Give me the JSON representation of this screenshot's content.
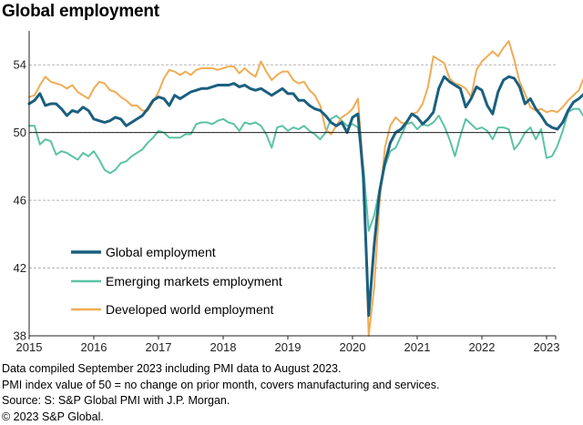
{
  "title": "Global employment",
  "notes": [
    "Data compiled September 2023 including PMI data to August 2023.",
    "PMI index value of 50 = no change on prior month, covers manufacturing and services.",
    "Source: S: S&P Global PMI with J.P. Morgan.",
    "© 2023 S&P Global."
  ],
  "chart_data": {
    "type": "line",
    "title": "Global employment",
    "x_axis": {
      "start": "2015-01",
      "end": "2023-08",
      "frequency": "monthly",
      "tick_labels": [
        "2015",
        "2016",
        "2017",
        "2018",
        "2019",
        "2020",
        "2021",
        "2022",
        "2023"
      ]
    },
    "y_axis": {
      "ylim": [
        38,
        56
      ],
      "ticks": [
        38,
        42,
        46,
        50,
        54
      ],
      "reference_line": 50
    },
    "grid": "horizontal dashed",
    "legend_position": "bottom-left inside",
    "series": [
      {
        "name": "Global employment",
        "color": "#1b5f7f",
        "values": [
          51.7,
          51.9,
          52.3,
          51.6,
          51.7,
          51.7,
          51.4,
          51.0,
          51.3,
          51.2,
          51.5,
          51.3,
          50.8,
          50.7,
          50.6,
          50.7,
          50.9,
          50.8,
          50.4,
          50.6,
          50.8,
          51.0,
          51.4,
          51.9,
          52.1,
          52.0,
          51.6,
          52.2,
          52.0,
          52.2,
          52.4,
          52.5,
          52.6,
          52.6,
          52.7,
          52.8,
          52.8,
          52.8,
          52.9,
          52.7,
          52.8,
          52.6,
          52.5,
          52.6,
          52.4,
          52.2,
          52.4,
          52.6,
          52.3,
          52.3,
          51.9,
          51.9,
          51.6,
          51.4,
          51.3,
          51.0,
          50.6,
          50.4,
          50.6,
          50.0,
          50.9,
          51.1,
          47.4,
          39.2,
          43.3,
          46.5,
          48.2,
          49.4,
          50.0,
          50.2,
          50.6,
          51.1,
          50.9,
          50.5,
          50.8,
          51.2,
          52.6,
          53.3,
          53.0,
          52.8,
          52.6,
          51.5,
          52.0,
          52.7,
          52.5,
          51.6,
          51.1,
          52.4,
          53.1,
          53.3,
          53.2,
          52.7,
          51.7,
          52.0,
          51.4,
          51.0,
          50.5,
          50.3,
          50.2,
          50.6,
          51.3,
          51.8,
          52.0,
          52.3,
          52.0,
          51.8,
          51.3,
          50.9,
          51.2
        ]
      },
      {
        "name": "Emerging markets employment",
        "color": "#5cc2a6",
        "values": [
          50.4,
          50.4,
          49.3,
          49.6,
          49.5,
          48.7,
          48.9,
          48.8,
          48.6,
          48.4,
          48.8,
          48.6,
          48.9,
          48.4,
          47.8,
          47.6,
          47.8,
          48.2,
          48.3,
          48.6,
          48.8,
          49.0,
          49.4,
          49.7,
          50.1,
          50.0,
          49.7,
          49.7,
          49.7,
          49.9,
          49.9,
          50.5,
          50.6,
          50.6,
          50.5,
          50.7,
          50.8,
          50.6,
          50.5,
          50.1,
          50.6,
          50.5,
          50.6,
          50.4,
          49.9,
          49.1,
          50.3,
          50.4,
          50.1,
          50.3,
          50.2,
          50.4,
          50.1,
          49.9,
          49.6,
          50.0,
          50.8,
          51.0,
          50.7,
          50.4,
          50.5,
          50.3,
          48.0,
          44.2,
          45.1,
          46.6,
          48.0,
          48.9,
          49.1,
          49.8,
          50.5,
          50.6,
          50.2,
          50.5,
          50.4,
          50.6,
          51.0,
          50.4,
          49.6,
          48.6,
          49.8,
          50.8,
          50.5,
          50.2,
          50.3,
          50.1,
          49.6,
          50.3,
          50.3,
          50.2,
          49.0,
          49.4,
          50.0,
          50.3,
          49.6,
          50.2,
          48.5,
          48.6,
          49.2,
          50.1,
          51.2,
          51.4,
          51.4,
          50.9,
          50.5,
          51.0,
          50.9,
          51.0,
          51.7
        ]
      },
      {
        "name": "Developed world employment",
        "color": "#f0ac55",
        "values": [
          52.1,
          52.2,
          52.8,
          53.3,
          53.0,
          52.9,
          52.8,
          52.6,
          52.8,
          52.4,
          52.2,
          52.0,
          52.6,
          53.0,
          52.9,
          52.5,
          52.4,
          52.1,
          51.9,
          51.6,
          51.6,
          51.3,
          51.3,
          51.8,
          52.4,
          53.2,
          53.7,
          53.6,
          53.4,
          53.6,
          53.4,
          53.7,
          53.8,
          53.8,
          53.8,
          53.7,
          53.8,
          53.9,
          53.9,
          53.5,
          53.8,
          53.5,
          53.3,
          54.2,
          53.6,
          53.1,
          53.4,
          53.6,
          53.6,
          53.1,
          52.9,
          53.0,
          52.5,
          52.2,
          51.6,
          50.2,
          49.9,
          50.4,
          50.9,
          51.1,
          51.4,
          52.0,
          47.8,
          38.0,
          40.8,
          45.8,
          49.1,
          50.4,
          50.9,
          50.6,
          50.5,
          51.1,
          51.2,
          51.7,
          52.7,
          54.5,
          54.3,
          54.1,
          53.2,
          52.9,
          52.8,
          52.6,
          52.1,
          53.7,
          54.2,
          54.5,
          54.8,
          54.5,
          55.0,
          55.4,
          54.3,
          53.0,
          52.3,
          51.5,
          51.3,
          51.4,
          51.2,
          51.3,
          51.2,
          51.5,
          51.9,
          52.2,
          52.5,
          53.3,
          53.0,
          52.7,
          51.7,
          51.2,
          50.7
        ]
      }
    ]
  }
}
